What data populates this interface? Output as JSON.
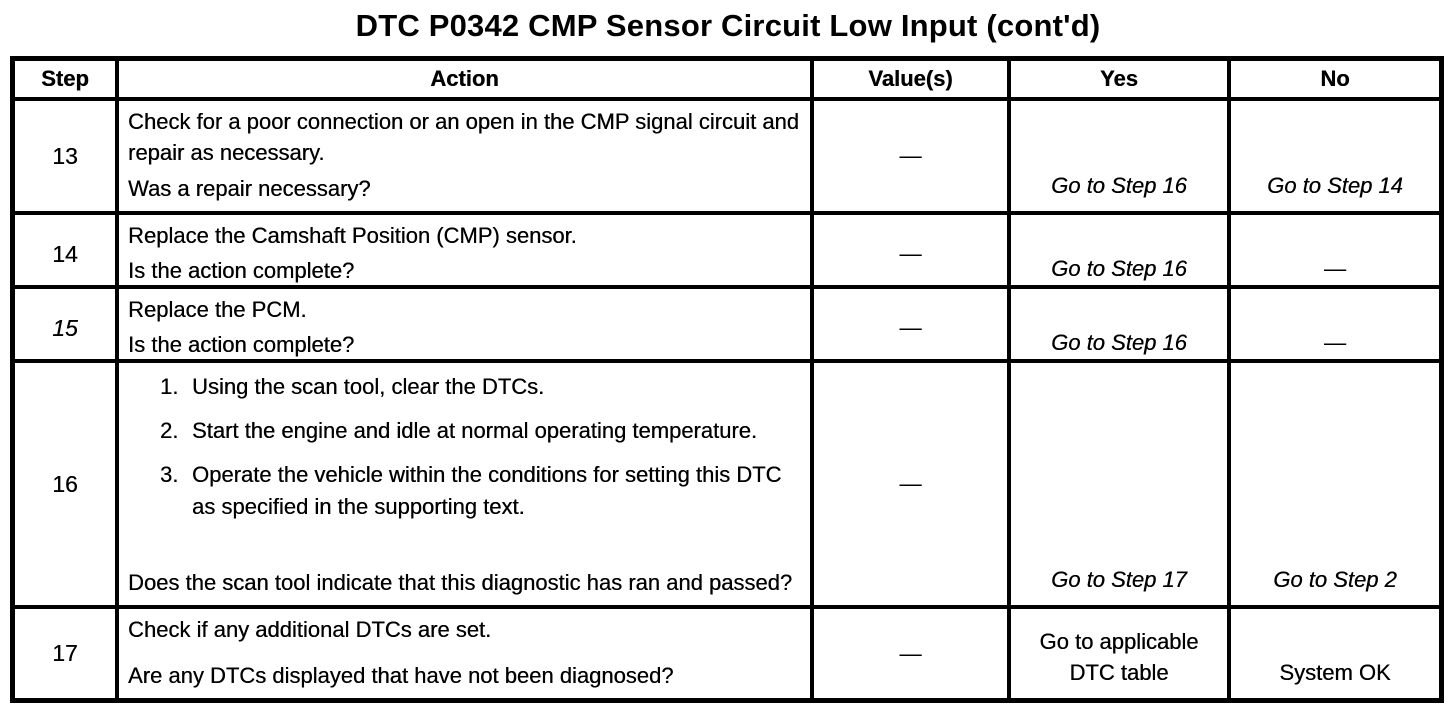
{
  "title": "DTC P0342 CMP Sensor Circuit Low Input (cont'd)",
  "table": {
    "headers": [
      "Step",
      "Action",
      "Value(s)",
      "Yes",
      "No"
    ],
    "rows": [
      {
        "step": "13",
        "action": "Check for a poor connection or an open in the CMP signal circuit and repair as necessary.",
        "question": "Was a repair necessary?",
        "value": "—",
        "yes": "Go to Step 16",
        "no": "Go to Step 14"
      },
      {
        "step": "14",
        "action": "Replace the Camshaft Position (CMP) sensor.",
        "question": "Is the action complete?",
        "value": "—",
        "yes": "Go to Step 16",
        "no": "—"
      },
      {
        "step": "15",
        "action": "Replace the PCM.",
        "question": "Is the action complete?",
        "value": "—",
        "yes": "Go to Step 16",
        "no": "—"
      },
      {
        "step": "16",
        "action_list": [
          {
            "num": "1.",
            "text": "Using the scan tool, clear the DTCs."
          },
          {
            "num": "2.",
            "text": "Start the engine and idle at normal operating temperature."
          },
          {
            "num": "3.",
            "text": "Operate the vehicle within the conditions for setting this DTC as specified in the supporting text."
          }
        ],
        "question": "Does the scan tool indicate that this diagnostic has ran and passed?",
        "value": "—",
        "yes": "Go to Step 17",
        "no": "Go to Step 2"
      },
      {
        "step": "17",
        "action": "Check if any additional DTCs are set.",
        "question": "Are any DTCs displayed that have not been diagnosed?",
        "value": "—",
        "yes": "Go to applicable DTC table",
        "no": "System OK"
      }
    ]
  }
}
